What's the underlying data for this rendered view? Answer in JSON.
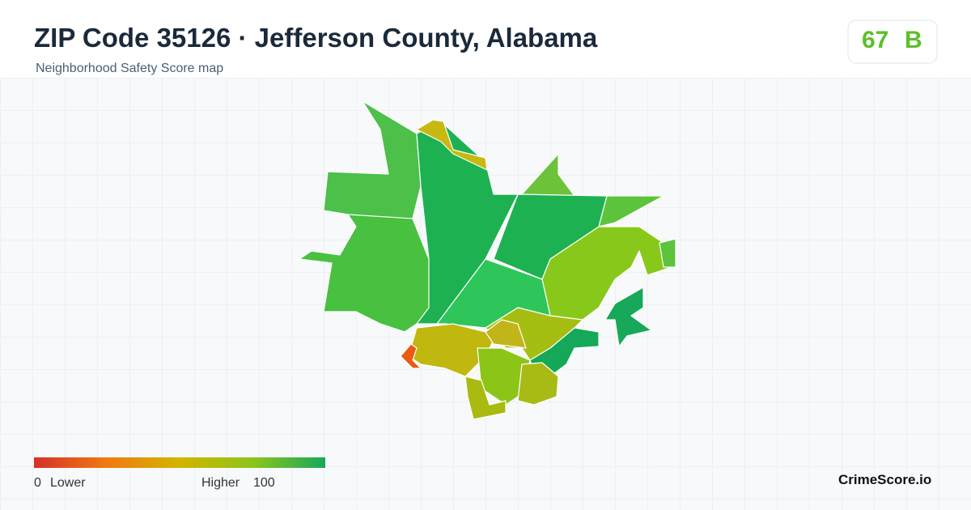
{
  "header": {
    "title": "ZIP Code 35126 · Jefferson County, Alabama",
    "subtitle": "Neighborhood Safety Score map"
  },
  "badge": {
    "score": 67,
    "grade": "B"
  },
  "legend": {
    "min": 0,
    "min_label": "Lower",
    "max_label": "Higher",
    "max": 100
  },
  "brand": "CrimeScore.io"
}
